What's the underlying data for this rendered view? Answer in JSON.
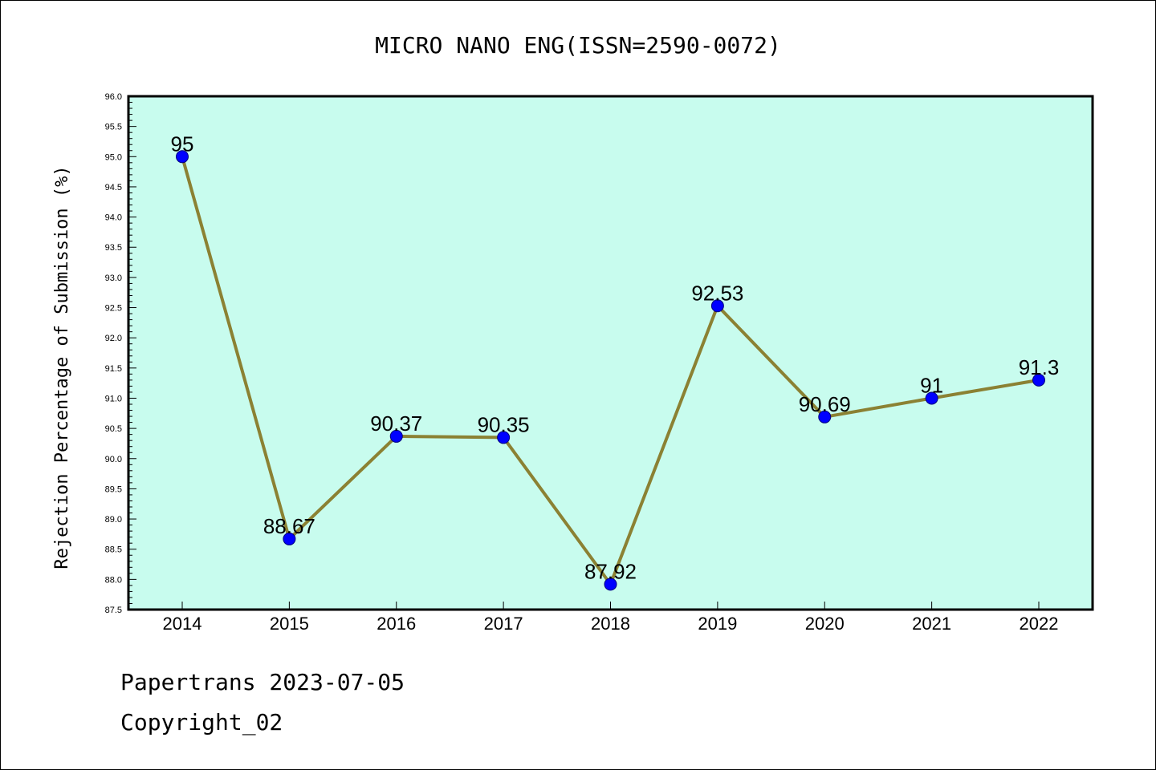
{
  "chart_data": {
    "type": "line",
    "title": "MICRO NANO ENG(ISSN=2590-0072)",
    "xlabel": "",
    "ylabel": "Rejection Percentage of Submission (%)",
    "categories": [
      "2014",
      "2015",
      "2016",
      "2017",
      "2018",
      "2019",
      "2020",
      "2021",
      "2022"
    ],
    "values": [
      95,
      88.67,
      90.37,
      90.35,
      87.92,
      92.53,
      90.69,
      91,
      91.3
    ],
    "data_labels": [
      "95",
      "88.67",
      "90.37",
      "90.35",
      "87.92",
      "92.53",
      "90.69",
      "91",
      "91.3"
    ],
    "ylim": [
      87.5,
      96.0
    ],
    "yticks": [
      "87.5",
      "88.0",
      "88.5",
      "89.0",
      "89.5",
      "90.0",
      "90.5",
      "91.0",
      "91.5",
      "92.0",
      "92.5",
      "93.0",
      "93.5",
      "94.0",
      "94.5",
      "95.0",
      "95.5",
      "96.0"
    ],
    "grid": false,
    "legend": "none",
    "colors": {
      "plot_background": "#c8fcee",
      "line": "#8b8133",
      "marker": "#0000ff",
      "marker_edge": "#00007f"
    }
  },
  "footer": {
    "line1": "Papertrans 2023-07-05",
    "line2": "Copyright_02"
  }
}
